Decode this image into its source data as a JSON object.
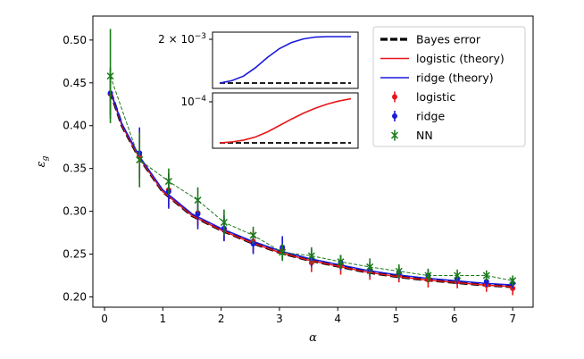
{
  "chart_data": {
    "type": "line",
    "xlabel": "α",
    "ylabel": "ε",
    "ylabel_sub": "g",
    "xlim": [
      -0.2,
      7.35
    ],
    "ylim": [
      0.188,
      0.528
    ],
    "xticks": [
      0,
      1,
      2,
      3,
      4,
      5,
      6,
      7
    ],
    "yticks": [
      0.2,
      0.25,
      0.3,
      0.35,
      0.4,
      0.45,
      0.5
    ],
    "ytick_labels": [
      "0.20",
      "0.25",
      "0.30",
      "0.35",
      "0.40",
      "0.45",
      "0.50"
    ],
    "grid": false,
    "legend_placement": "top-right",
    "curves": [
      {
        "name": "Bayes error",
        "color": "#000000",
        "style": "dashed-thick",
        "x": [
          0.1,
          0.3,
          0.6,
          1.0,
          1.5,
          2.0,
          2.5,
          3.0,
          3.5,
          4.0,
          4.5,
          5.0,
          5.5,
          6.0,
          6.5,
          7.0
        ],
        "y": [
          0.44,
          0.4,
          0.362,
          0.323,
          0.295,
          0.278,
          0.264,
          0.252,
          0.243,
          0.236,
          0.229,
          0.224,
          0.22,
          0.217,
          0.214,
          0.212
        ]
      },
      {
        "name": "logistic (theory)",
        "color": "#e8161a",
        "style": "solid",
        "x": [
          0.1,
          0.3,
          0.6,
          1.0,
          1.5,
          2.0,
          2.5,
          3.0,
          3.5,
          4.0,
          4.5,
          5.0,
          5.5,
          6.0,
          6.5,
          7.0
        ],
        "y": [
          0.44,
          0.4,
          0.362,
          0.323,
          0.295,
          0.278,
          0.264,
          0.252,
          0.243,
          0.236,
          0.229,
          0.224,
          0.22,
          0.217,
          0.214,
          0.212
        ]
      },
      {
        "name": "ridge (theory)",
        "color": "#1a1adc",
        "style": "solid",
        "x": [
          0.1,
          0.3,
          0.6,
          1.0,
          1.5,
          2.0,
          2.5,
          3.0,
          3.5,
          4.0,
          4.5,
          5.0,
          5.5,
          6.0,
          6.5,
          7.0
        ],
        "y": [
          0.441,
          0.402,
          0.364,
          0.325,
          0.297,
          0.28,
          0.266,
          0.254,
          0.245,
          0.238,
          0.231,
          0.226,
          0.222,
          0.219,
          0.216,
          0.214
        ]
      }
    ],
    "points": [
      {
        "name": "logistic",
        "color": "#e8161a",
        "marker": "circle",
        "x": [
          0.1,
          0.6,
          1.1,
          1.6,
          2.05,
          2.55,
          3.05,
          3.55,
          4.05,
          4.55,
          5.05,
          5.55,
          6.05,
          6.55,
          7.0
        ],
        "y": [
          0.437,
          0.365,
          0.325,
          0.298,
          0.279,
          0.265,
          0.256,
          0.24,
          0.236,
          0.23,
          0.226,
          0.22,
          0.218,
          0.214,
          0.21
        ],
        "err": [
          0.025,
          0.025,
          0.02,
          0.015,
          0.013,
          0.013,
          0.012,
          0.011,
          0.01,
          0.01,
          0.009,
          0.009,
          0.008,
          0.008,
          0.008
        ]
      },
      {
        "name": "ridge",
        "color": "#1a1adc",
        "marker": "circle",
        "x": [
          0.1,
          0.6,
          1.1,
          1.6,
          2.05,
          2.55,
          3.05,
          3.55,
          4.05,
          4.55,
          5.05,
          5.55,
          6.05,
          6.55,
          7.0
        ],
        "y": [
          0.438,
          0.368,
          0.323,
          0.297,
          0.28,
          0.262,
          0.258,
          0.245,
          0.24,
          0.232,
          0.228,
          0.225,
          0.221,
          0.218,
          0.216
        ],
        "err": [
          0.03,
          0.03,
          0.02,
          0.018,
          0.015,
          0.012,
          0.013,
          0.01,
          0.009,
          0.008,
          0.007,
          0.007,
          0.006,
          0.006,
          0.006
        ]
      },
      {
        "name": "NN",
        "color": "#1a7a1a",
        "marker": "x",
        "x": [
          0.1,
          0.6,
          1.1,
          1.6,
          2.05,
          2.55,
          3.05,
          3.55,
          4.05,
          4.55,
          5.05,
          5.55,
          6.05,
          6.55,
          7.0
        ],
        "y": [
          0.458,
          0.36,
          0.335,
          0.313,
          0.287,
          0.272,
          0.252,
          0.248,
          0.241,
          0.235,
          0.23,
          0.225,
          0.225,
          0.225,
          0.219
        ],
        "err": [
          0.055,
          0.032,
          0.015,
          0.015,
          0.015,
          0.01,
          0.01,
          0.01,
          0.008,
          0.01,
          0.008,
          0.008,
          0.007,
          0.006,
          0.006
        ]
      }
    ],
    "insets": [
      {
        "ytick_label_base": "2 × 10",
        "ytick_label_exp": "−3",
        "color": "#1a1adc",
        "curve": [
          0.0,
          0.05,
          0.15,
          0.33,
          0.55,
          0.74,
          0.87,
          0.95,
          0.99,
          1.0,
          1.0,
          1.0
        ]
      },
      {
        "ytick_label_base": "10",
        "ytick_label_exp": "−4",
        "color": "#e8161a",
        "curve": [
          0.0,
          0.02,
          0.06,
          0.13,
          0.24,
          0.38,
          0.52,
          0.65,
          0.76,
          0.85,
          0.92,
          0.97
        ]
      }
    ]
  },
  "legend": [
    {
      "label": "Bayes error",
      "kind": "dashed-thick",
      "color": "#000000"
    },
    {
      "label": "logistic (theory)",
      "kind": "line",
      "color": "#e8161a"
    },
    {
      "label": "ridge (theory)",
      "kind": "line",
      "color": "#1a1adc"
    },
    {
      "label": "logistic",
      "kind": "circle-err",
      "color": "#e8161a"
    },
    {
      "label": "ridge",
      "kind": "circle-err",
      "color": "#1a1adc"
    },
    {
      "label": "NN",
      "kind": "x-err",
      "color": "#1a7a1a"
    }
  ]
}
